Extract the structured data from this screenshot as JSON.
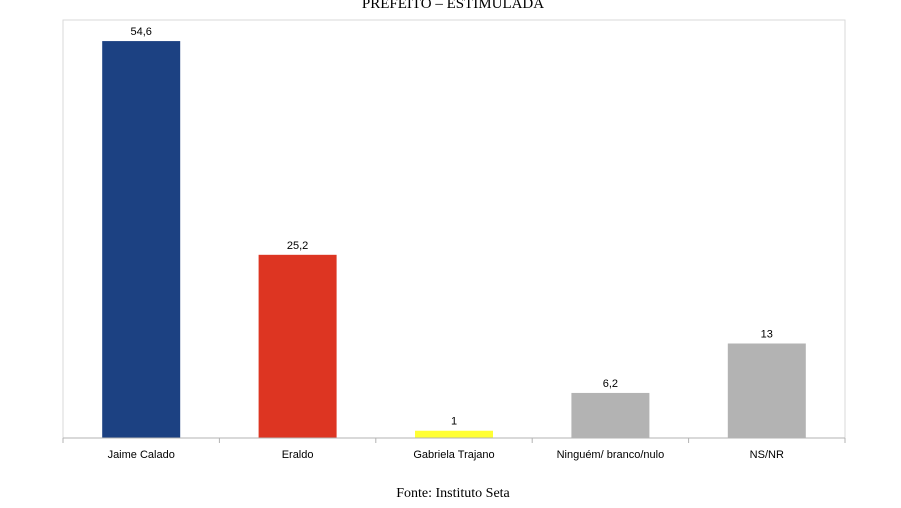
{
  "chart_data": {
    "type": "bar",
    "title": "PREFEITO – ESTIMULADA",
    "categories": [
      "Jaime Calado",
      "Eraldo",
      "Gabriela Trajano",
      "Ninguém/ branco/nulo",
      "NS/NR"
    ],
    "values": [
      54.6,
      25.2,
      1,
      6.2,
      13
    ],
    "value_labels": [
      "54,6",
      "25,2",
      "1",
      "6,2",
      "13"
    ],
    "colors": [
      "#1c4182",
      "#dd3522",
      "#ffff33",
      "#b3b3b3",
      "#b3b3b3"
    ],
    "ylim": [
      0,
      57.5
    ],
    "grid": false,
    "legend": "none",
    "source": "Fonte: Instituto Seta"
  }
}
